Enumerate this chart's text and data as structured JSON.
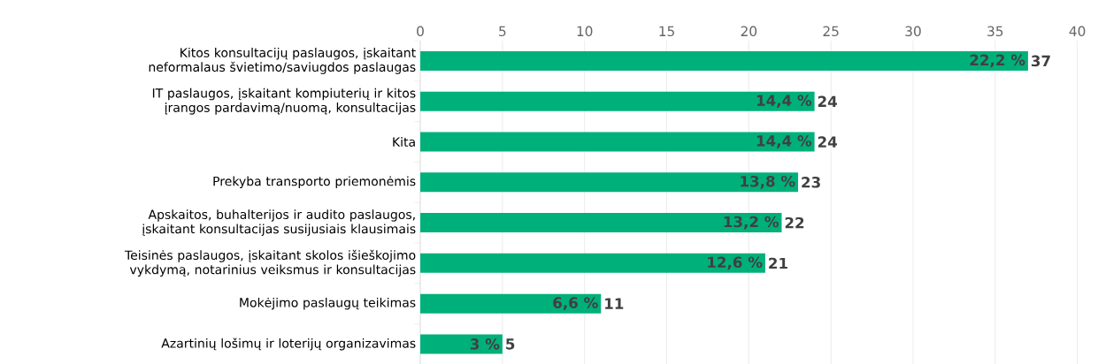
{
  "chart_data": {
    "type": "bar",
    "orientation": "horizontal",
    "categories": [
      "Kitos konsultacijų paslaugos, įskaitant neformalaus švietimo/saviugdos paslaugas",
      "IT paslaugos, įskaitant kompiuterių ir kitos įrangos pardavimą/nuomą, konsultacijas",
      "Kita",
      "Prekyba transporto priemonėmis",
      "Apskaitos, buhalterijos ir audito paslaugos, įskaitant konsultacijas susijusiais klausimais",
      "Teisinės paslaugos, įskaitant skolos išieškojimo vykdymą, notarinius veiksmus ir konsultacijas",
      "Mokėjimo paslaugų teikimas",
      "Azartinių lošimų ir loterijų organizavimas"
    ],
    "values": [
      37,
      24,
      24,
      23,
      22,
      21,
      11,
      5
    ],
    "color": "#00b07a",
    "xlim": [
      0,
      40
    ],
    "xticks": [
      0,
      5,
      10,
      15,
      20,
      25,
      30,
      35,
      40
    ],
    "grid": "x",
    "data_labels": true,
    "annotations": [
      {
        "text": "22,2 %",
        "x": 37,
        "y": "Kitos konsultacijų paslaugos, įskaitant neformalaus švietimo/saviugdos paslaugas"
      },
      {
        "text": "14,4 %",
        "x": 24,
        "y": "IT paslaugos, įskaitant kompiuterių ir kitos įrangos pardavimą/nuomą, konsultacijas"
      },
      {
        "text": "14,4 %",
        "x": 24,
        "y": "Kita"
      },
      {
        "text": "13,8 %",
        "x": 23,
        "y": "Prekyba transporto priemonėmis"
      },
      {
        "text": "13,2 %",
        "x": 22,
        "y": "Apskaitos, buhalterijos ir audito paslaugos, įskaitant konsultacijas susijusiais klausimais"
      },
      {
        "text": "12,6 %",
        "x": 21,
        "y": "Teisinės paslaugos, įskaitant skolos išieškojimo vykdymą, notarinius veiksmus ir konsultacijas"
      },
      {
        "text": "6,6 %",
        "x": 11,
        "y": "Mokėjimo paslaugų teikimas"
      },
      {
        "text": "3 %",
        "x": 5,
        "y": "Azartinių lošimų ir loterijų organizavimas"
      }
    ]
  }
}
